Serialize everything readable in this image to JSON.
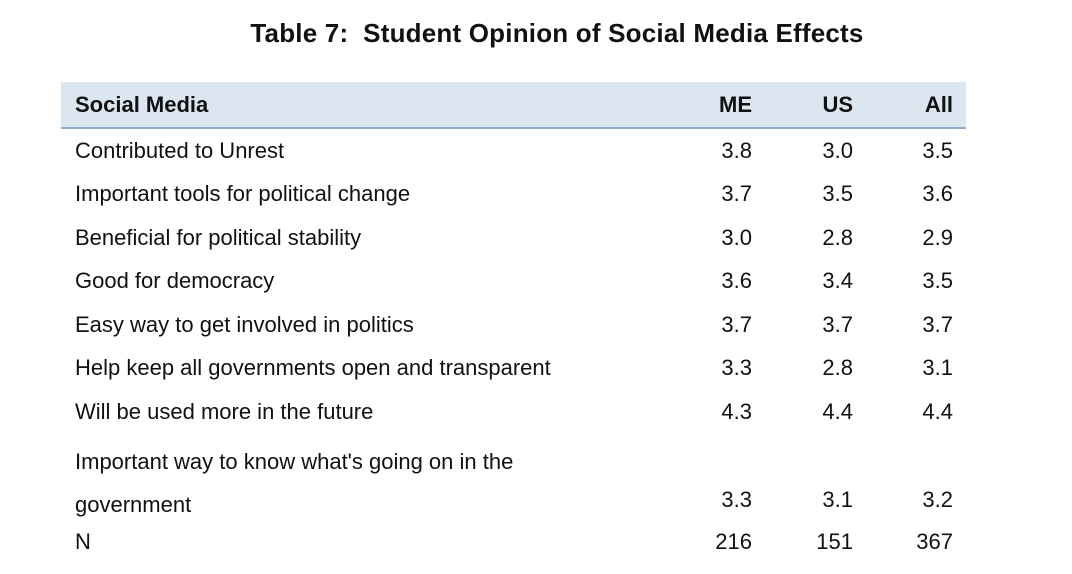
{
  "title": "Table 7:  Student Opinion of Social Media Effects",
  "columns": [
    "Social Media",
    "ME",
    "US",
    "All"
  ],
  "rows": [
    {
      "label": "Contributed to Unrest",
      "me": "3.8",
      "us": "3.0",
      "all": "3.5"
    },
    {
      "label": "Important tools for political change",
      "me": "3.7",
      "us": "3.5",
      "all": "3.6"
    },
    {
      "label": "Beneficial for political stability",
      "me": "3.0",
      "us": "2.8",
      "all": "2.9"
    },
    {
      "label": "Good for democracy",
      "me": "3.6",
      "us": "3.4",
      "all": "3.5"
    },
    {
      "label": "Easy way to get involved in politics",
      "me": "3.7",
      "us": "3.7",
      "all": "3.7"
    },
    {
      "label": "Help keep all governments open and transparent",
      "me": "3.3",
      "us": "2.8",
      "all": "3.1"
    },
    {
      "label": "Will be used more in the future",
      "me": "4.3",
      "us": "4.4",
      "all": "4.4"
    },
    {
      "label": "Important way to know what's going on in the government",
      "me": "3.3",
      "us": "3.1",
      "all": "3.2"
    },
    {
      "label": "N",
      "me": "216",
      "us": "151",
      "all": "367"
    }
  ]
}
